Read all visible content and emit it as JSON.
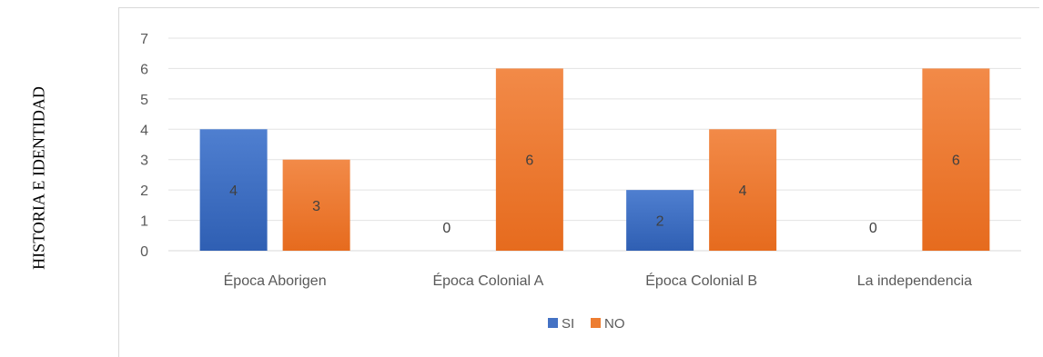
{
  "side_label": "HISTORIA E IDENTIDAD",
  "chart_data": {
    "type": "bar",
    "categories": [
      "Época Aborigen",
      "Época Colonial A",
      "Época Colonial B",
      "La independencia"
    ],
    "series": [
      {
        "name": "SI",
        "values": [
          4,
          0,
          2,
          0
        ],
        "color": "#4472c4"
      },
      {
        "name": "NO",
        "values": [
          3,
          6,
          4,
          6
        ],
        "color": "#ed7d31"
      }
    ],
    "ylim": [
      0,
      7
    ],
    "yticks": [
      0,
      1,
      2,
      3,
      4,
      5,
      6,
      7
    ],
    "grid": true,
    "data_labels": true,
    "legend": "bottom",
    "title": "",
    "xlabel": "",
    "ylabel": ""
  }
}
